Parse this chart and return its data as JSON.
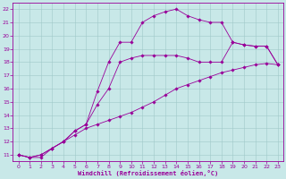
{
  "xlabel": "Windchill (Refroidissement éolien,°C)",
  "background_color": "#c8e8e8",
  "line_color": "#990099",
  "xlim": [
    -0.5,
    23.5
  ],
  "ylim": [
    10.5,
    22.5
  ],
  "xticks": [
    0,
    1,
    2,
    3,
    4,
    5,
    6,
    7,
    8,
    9,
    10,
    11,
    12,
    13,
    14,
    15,
    16,
    17,
    18,
    19,
    20,
    21,
    22,
    23
  ],
  "yticks": [
    11,
    12,
    13,
    14,
    15,
    16,
    17,
    18,
    19,
    20,
    21,
    22
  ],
  "curve1_x": [
    0,
    1,
    2,
    3,
    4,
    5,
    6,
    7,
    8,
    9,
    10,
    11,
    12,
    13,
    14,
    15,
    16,
    17,
    18,
    19,
    20,
    21,
    22,
    23
  ],
  "curve1_y": [
    11.0,
    10.8,
    11.0,
    11.5,
    12.0,
    12.5,
    13.0,
    13.3,
    13.6,
    13.9,
    14.2,
    14.6,
    15.0,
    15.5,
    16.0,
    16.3,
    16.6,
    16.9,
    17.2,
    17.4,
    17.6,
    17.8,
    17.9,
    17.8
  ],
  "curve2_x": [
    0,
    1,
    2,
    3,
    4,
    5,
    6,
    7,
    8,
    9,
    10,
    11,
    12,
    13,
    14,
    15,
    16,
    17,
    18,
    19,
    20,
    21,
    22,
    23
  ],
  "curve2_y": [
    11.0,
    10.8,
    11.0,
    11.5,
    12.0,
    12.8,
    13.3,
    14.8,
    16.0,
    18.0,
    18.3,
    18.5,
    18.5,
    18.5,
    18.5,
    18.3,
    18.0,
    18.0,
    18.0,
    19.5,
    19.3,
    19.2,
    19.2,
    17.8
  ],
  "curve3_x": [
    0,
    1,
    2,
    3,
    4,
    5,
    6,
    7,
    8,
    9,
    10,
    11,
    12,
    13,
    14,
    15,
    16,
    17,
    18,
    19,
    20,
    21,
    22,
    23
  ],
  "curve3_y": [
    11.0,
    10.8,
    10.8,
    11.5,
    12.0,
    12.8,
    13.3,
    15.8,
    18.0,
    19.5,
    19.5,
    21.0,
    21.5,
    21.8,
    22.0,
    21.5,
    21.2,
    21.0,
    21.0,
    19.5,
    19.3,
    19.2,
    19.2,
    17.8
  ]
}
